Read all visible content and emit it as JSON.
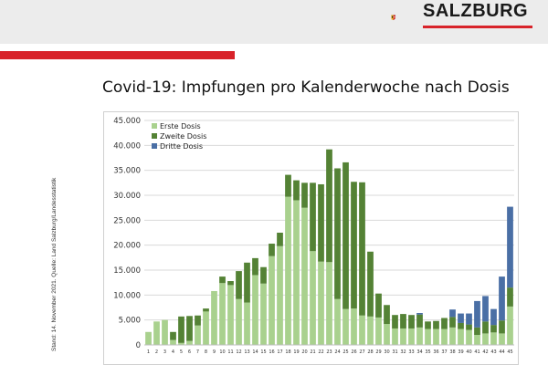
{
  "header": {
    "logo_text": "SALZBURG",
    "accent_color": "#d8232a"
  },
  "title": "Covid-19: Impfungen pro Kalenderwoche nach Dosis",
  "side_note": "Stand: 14. November 2021. Quelle: Land Salzburg/Landesstatistik",
  "chart_data": {
    "type": "bar",
    "stacked": true,
    "categories": [
      "1",
      "2",
      "3",
      "4",
      "5",
      "6",
      "7",
      "8",
      "9",
      "10",
      "11",
      "12",
      "13",
      "14",
      "15",
      "16",
      "17",
      "18",
      "19",
      "20",
      "21",
      "22",
      "23",
      "24",
      "25",
      "26",
      "27",
      "28",
      "29",
      "30",
      "31",
      "32",
      "33",
      "34",
      "35",
      "36",
      "37",
      "38",
      "39",
      "40",
      "41",
      "42",
      "43",
      "44",
      "45"
    ],
    "series": [
      {
        "name": "Erste Dosis",
        "color": "#a9d18e",
        "values": [
          2600,
          4700,
          5000,
          1000,
          400,
          800,
          3900,
          6700,
          10800,
          12400,
          12000,
          9200,
          8500,
          14000,
          12300,
          17800,
          19800,
          29700,
          29000,
          27500,
          18800,
          16700,
          16600,
          9200,
          7200,
          7300,
          5900,
          5700,
          5500,
          4200,
          3300,
          3300,
          3300,
          3500,
          3200,
          3200,
          3200,
          3500,
          3200,
          3000,
          2000,
          2300,
          2500,
          2300,
          7700
        ]
      },
      {
        "name": "Zweite Dosis",
        "color": "#548235",
        "values": [
          0,
          0,
          0,
          1600,
          5300,
          5000,
          2000,
          600,
          0,
          1300,
          800,
          5600,
          8000,
          3400,
          3300,
          2500,
          2700,
          4400,
          4000,
          5000,
          13700,
          15500,
          22600,
          26200,
          29400,
          25400,
          26700,
          13000,
          4800,
          3800,
          2700,
          2900,
          2700,
          2600,
          1500,
          1600,
          2200,
          2100,
          1200,
          1100,
          1500,
          2400,
          1500,
          2600,
          3800
        ]
      },
      {
        "name": "Dritte Dosis",
        "color": "#4a6fa5",
        "values": [
          0,
          0,
          0,
          0,
          0,
          0,
          0,
          0,
          0,
          0,
          0,
          0,
          0,
          0,
          0,
          0,
          0,
          0,
          0,
          0,
          0,
          0,
          0,
          0,
          0,
          0,
          0,
          0,
          0,
          0,
          0,
          0,
          0,
          300,
          0,
          0,
          0,
          1500,
          1900,
          2200,
          5300,
          5100,
          3200,
          8800,
          16200
        ]
      }
    ],
    "ylim": [
      0,
      45000
    ],
    "yticks": [
      "0",
      "5.000",
      "10.000",
      "15.000",
      "20.000",
      "25.000",
      "30.000",
      "35.000",
      "40.000",
      "45.000"
    ],
    "grid": true,
    "legend_position": "top-left"
  }
}
